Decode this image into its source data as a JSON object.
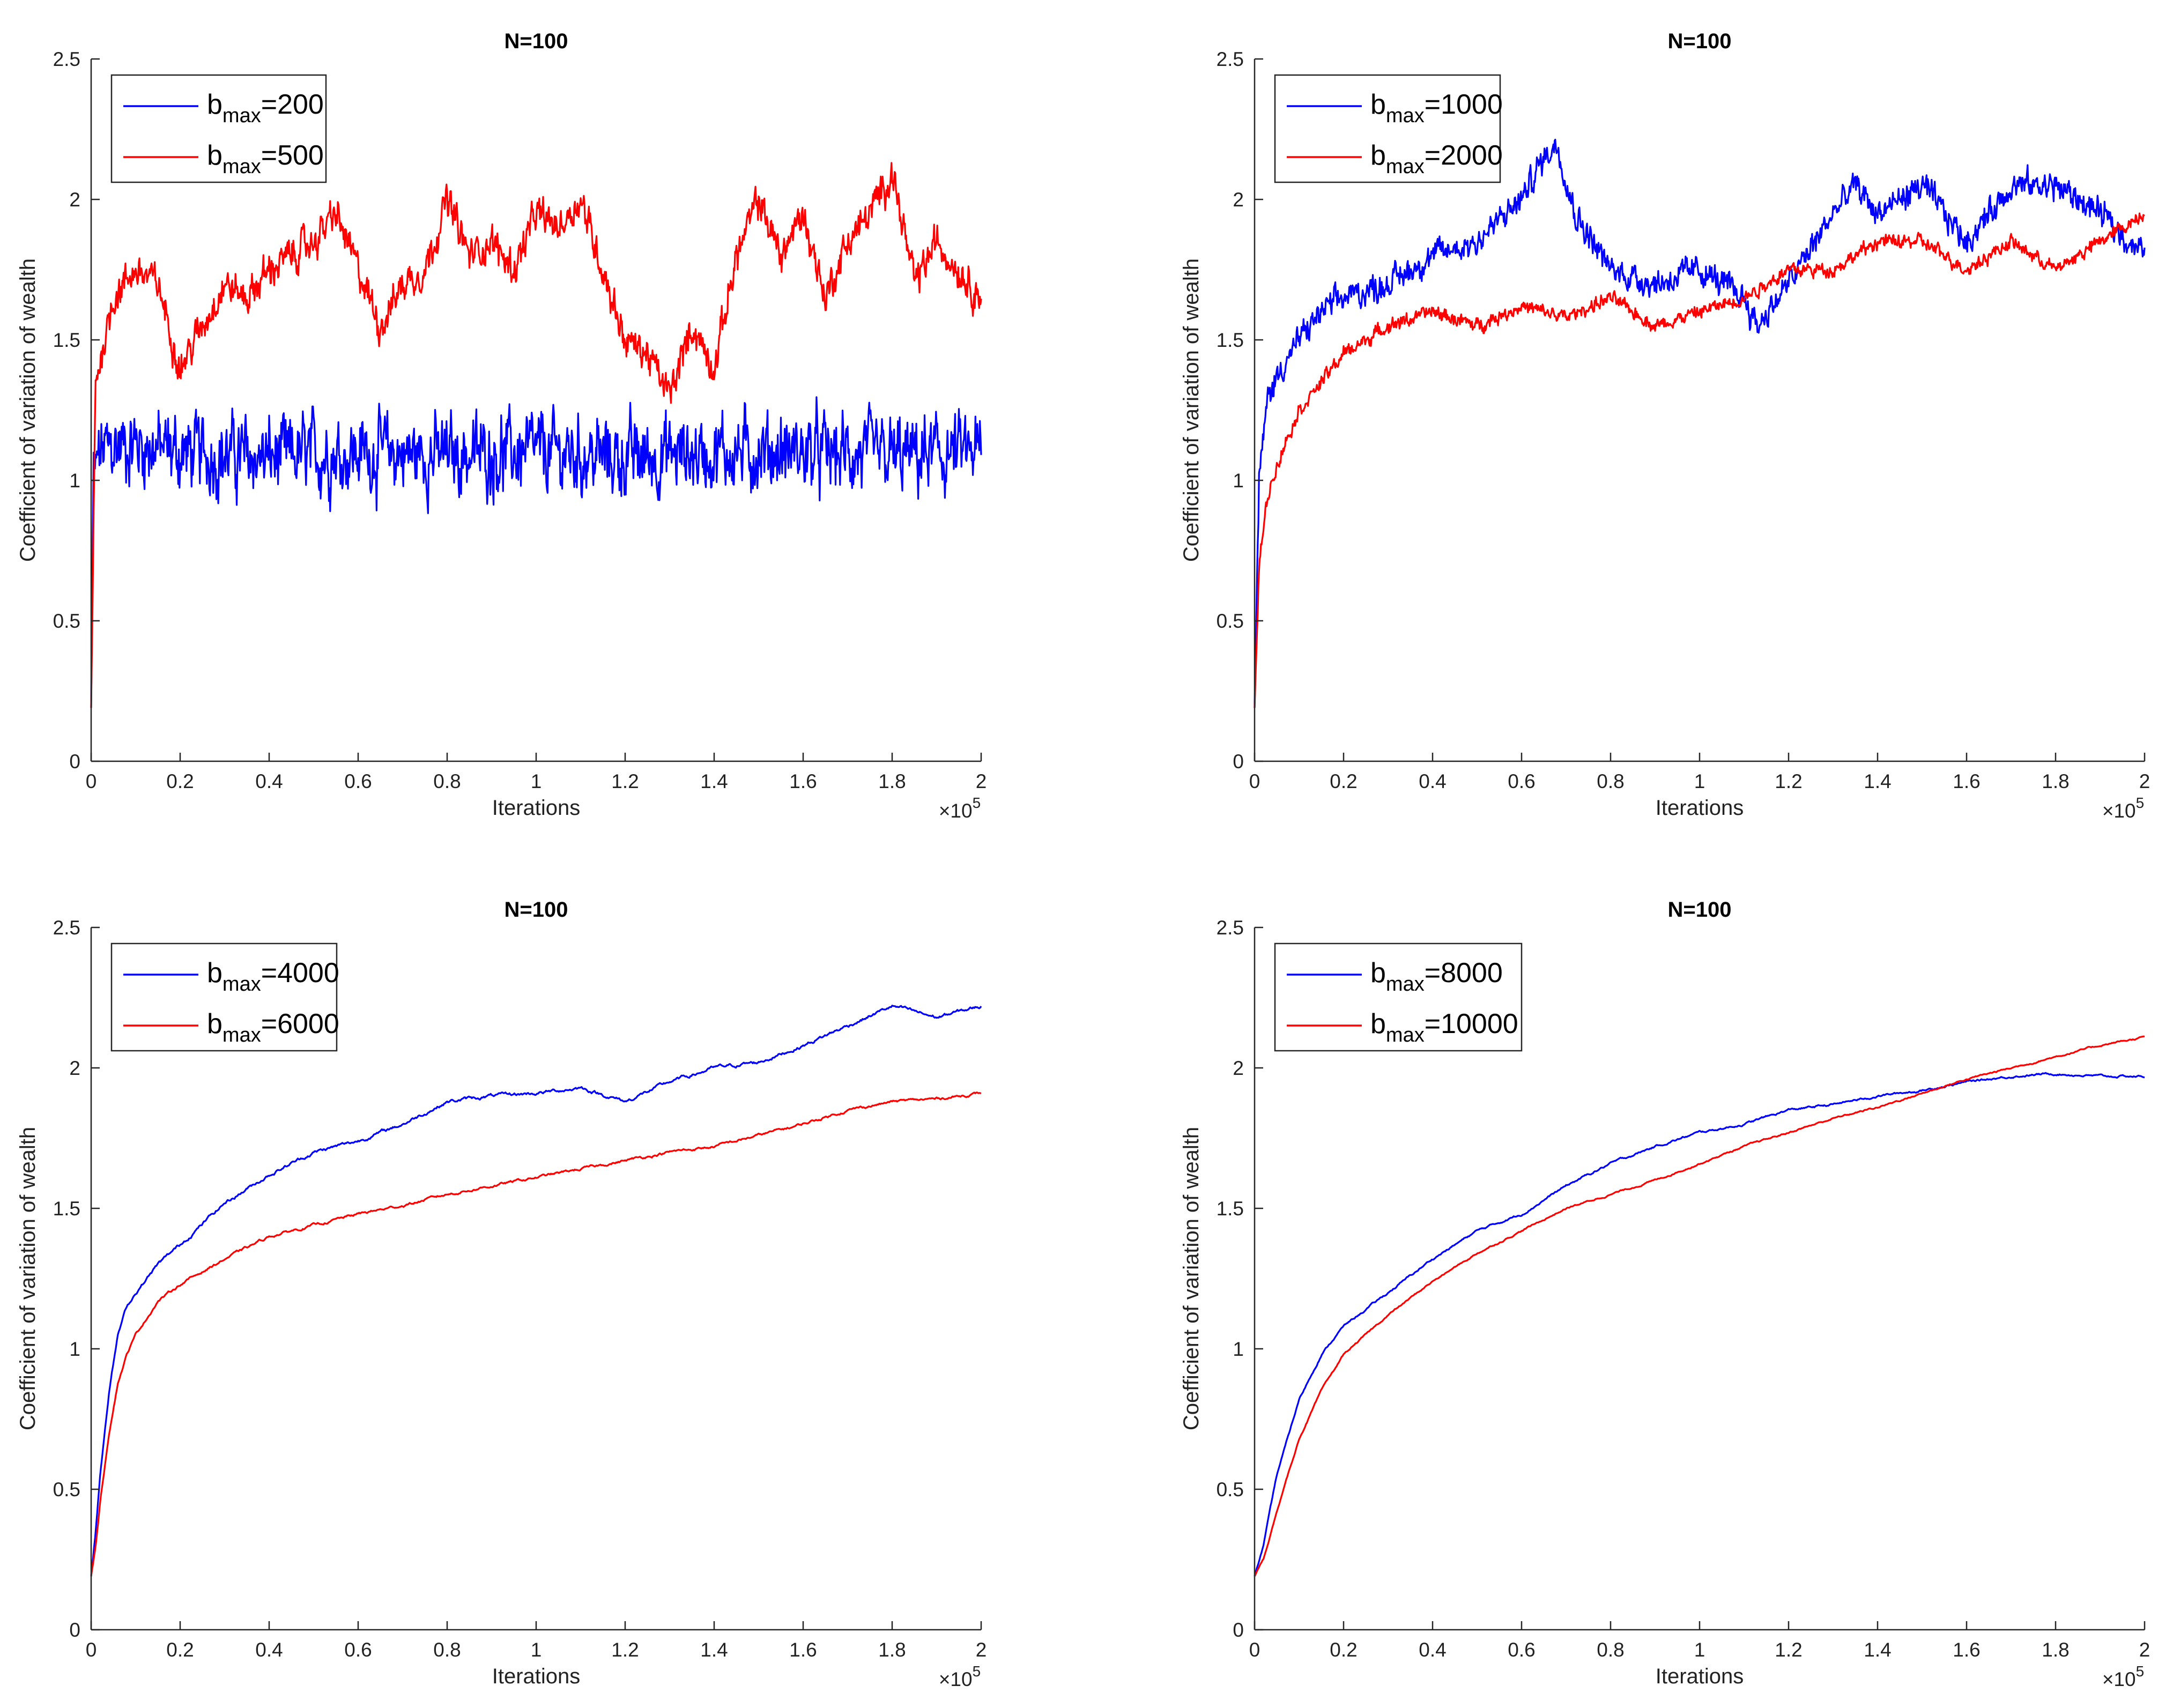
{
  "figure_title": "Coefficient of variation of wealth vs iterations, N=100",
  "colors": {
    "blue": "#0000ff",
    "red": "#ff0000",
    "axis": "#262626"
  },
  "chart_data": [
    {
      "type": "line",
      "title": "N=100",
      "xlabel": "Iterations",
      "ylabel": "Coefficient of variation of wealth",
      "x_multiplier": "×10",
      "x_multiplier_exp": "5",
      "xlim": [
        0,
        2
      ],
      "ylim": [
        0,
        2.5
      ],
      "xticks": [
        "0",
        "0.2",
        "0.4",
        "0.6",
        "0.8",
        "1",
        "1.2",
        "1.4",
        "1.6",
        "1.8",
        "2"
      ],
      "yticks": [
        "0",
        "0.5",
        "1",
        "1.5",
        "2",
        "2.5"
      ],
      "legend_position": "top-left",
      "series": [
        {
          "name": "b",
          "sub": "max",
          "suffix": "=200",
          "color": "#0000ff",
          "style": "noisy",
          "x": [
            0,
            0.005,
            0.02,
            0.05,
            0.1,
            0.2,
            0.4,
            0.6,
            0.8,
            1.0,
            1.2,
            1.4,
            1.6,
            1.8,
            2.0
          ],
          "y": [
            0.19,
            1.0,
            1.1,
            1.12,
            1.13,
            1.1,
            1.08,
            1.1,
            1.09,
            1.1,
            1.08,
            1.1,
            1.1,
            1.08,
            1.1
          ],
          "noise": 0.11
        },
        {
          "name": "b",
          "sub": "max",
          "suffix": "=500",
          "color": "#ff0000",
          "style": "noisy",
          "x": [
            0,
            0.01,
            0.05,
            0.1,
            0.15,
            0.2,
            0.25,
            0.3,
            0.35,
            0.4,
            0.45,
            0.5,
            0.55,
            0.6,
            0.65,
            0.7,
            0.75,
            0.8,
            0.85,
            0.9,
            0.95,
            1.0,
            1.05,
            1.1,
            1.15,
            1.2,
            1.25,
            1.3,
            1.35,
            1.4,
            1.45,
            1.5,
            1.55,
            1.6,
            1.65,
            1.7,
            1.75,
            1.8,
            1.85,
            1.9,
            1.95,
            2.0
          ],
          "y": [
            0.19,
            1.35,
            1.65,
            1.75,
            1.7,
            1.4,
            1.55,
            1.7,
            1.65,
            1.75,
            1.8,
            1.85,
            1.95,
            1.75,
            1.55,
            1.7,
            1.75,
            2.0,
            1.8,
            1.85,
            1.75,
            1.95,
            1.9,
            2.0,
            1.75,
            1.5,
            1.45,
            1.3,
            1.55,
            1.4,
            1.8,
            2.0,
            1.8,
            1.95,
            1.65,
            1.85,
            1.95,
            2.1,
            1.7,
            1.85,
            1.75,
            1.65
          ],
          "noise": 0.05
        }
      ]
    },
    {
      "type": "line",
      "title": "N=100",
      "xlabel": "Iterations",
      "ylabel": "Coefficient of variation of wealth",
      "x_multiplier": "×10",
      "x_multiplier_exp": "5",
      "xlim": [
        0,
        2
      ],
      "ylim": [
        0,
        2.5
      ],
      "xticks": [
        "0",
        "0.2",
        "0.4",
        "0.6",
        "0.8",
        "1",
        "1.2",
        "1.4",
        "1.6",
        "1.8",
        "2"
      ],
      "yticks": [
        "0",
        "0.5",
        "1",
        "1.5",
        "2",
        "2.5"
      ],
      "legend_position": "top-left",
      "series": [
        {
          "name": "b",
          "sub": "max",
          "suffix": "=1000",
          "color": "#0000ff",
          "style": "noisy",
          "x": [
            0,
            0.01,
            0.03,
            0.06,
            0.1,
            0.15,
            0.2,
            0.3,
            0.4,
            0.5,
            0.6,
            0.65,
            0.68,
            0.72,
            0.8,
            0.9,
            1.0,
            1.1,
            1.13,
            1.2,
            1.3,
            1.35,
            1.4,
            1.5,
            1.6,
            1.7,
            1.8,
            1.9,
            2.0
          ],
          "y": [
            0.19,
            1.0,
            1.3,
            1.4,
            1.5,
            1.6,
            1.65,
            1.7,
            1.8,
            1.85,
            2.0,
            2.15,
            2.2,
            1.95,
            1.75,
            1.7,
            1.75,
            1.65,
            1.55,
            1.7,
            1.95,
            2.05,
            1.95,
            2.05,
            1.85,
            2.05,
            2.05,
            1.95,
            1.8
          ],
          "noise": 0.04
        },
        {
          "name": "b",
          "sub": "max",
          "suffix": "=2000",
          "color": "#ff0000",
          "style": "noisy",
          "x": [
            0,
            0.01,
            0.03,
            0.06,
            0.1,
            0.15,
            0.2,
            0.3,
            0.4,
            0.5,
            0.6,
            0.7,
            0.8,
            0.9,
            1.0,
            1.1,
            1.2,
            1.3,
            1.4,
            1.5,
            1.6,
            1.7,
            1.8,
            1.9,
            2.0
          ],
          "y": [
            0.19,
            0.7,
            0.95,
            1.1,
            1.25,
            1.35,
            1.45,
            1.55,
            1.6,
            1.55,
            1.62,
            1.58,
            1.65,
            1.55,
            1.6,
            1.65,
            1.75,
            1.75,
            1.85,
            1.85,
            1.75,
            1.85,
            1.75,
            1.85,
            1.95
          ],
          "noise": 0.02
        }
      ]
    },
    {
      "type": "line",
      "title": "N=100",
      "xlabel": "Iterations",
      "ylabel": "Coefficient of variation of wealth",
      "x_multiplier": "×10",
      "x_multiplier_exp": "5",
      "xlim": [
        0,
        2
      ],
      "ylim": [
        0,
        2.5
      ],
      "xticks": [
        "0",
        "0.2",
        "0.4",
        "0.6",
        "0.8",
        "1",
        "1.2",
        "1.4",
        "1.6",
        "1.8",
        "2"
      ],
      "yticks": [
        "0",
        "0.5",
        "1",
        "1.5",
        "2",
        "2.5"
      ],
      "legend_position": "top-left",
      "series": [
        {
          "name": "b",
          "sub": "max",
          "suffix": "=4000",
          "color": "#0000ff",
          "style": "smooth",
          "x": [
            0,
            0.01,
            0.02,
            0.04,
            0.06,
            0.08,
            0.1,
            0.15,
            0.2,
            0.3,
            0.4,
            0.5,
            0.6,
            0.7,
            0.8,
            0.9,
            1.0,
            1.1,
            1.2,
            1.3,
            1.4,
            1.5,
            1.6,
            1.7,
            1.8,
            1.9,
            2.0
          ],
          "y": [
            0.19,
            0.35,
            0.55,
            0.85,
            1.05,
            1.15,
            1.2,
            1.3,
            1.37,
            1.52,
            1.62,
            1.7,
            1.74,
            1.8,
            1.88,
            1.9,
            1.91,
            1.93,
            1.88,
            1.95,
            2.0,
            2.02,
            2.08,
            2.15,
            2.22,
            2.18,
            2.22
          ],
          "noise": 0.008
        },
        {
          "name": "b",
          "sub": "max",
          "suffix": "=6000",
          "color": "#ff0000",
          "style": "smooth",
          "x": [
            0,
            0.01,
            0.02,
            0.04,
            0.06,
            0.08,
            0.1,
            0.15,
            0.2,
            0.3,
            0.4,
            0.5,
            0.6,
            0.7,
            0.8,
            0.9,
            1.0,
            1.1,
            1.2,
            1.3,
            1.4,
            1.5,
            1.6,
            1.7,
            1.8,
            1.9,
            2.0
          ],
          "y": [
            0.19,
            0.3,
            0.45,
            0.7,
            0.88,
            0.98,
            1.05,
            1.17,
            1.23,
            1.32,
            1.4,
            1.44,
            1.48,
            1.51,
            1.55,
            1.58,
            1.61,
            1.64,
            1.67,
            1.7,
            1.72,
            1.76,
            1.8,
            1.85,
            1.88,
            1.89,
            1.91
          ],
          "noise": 0.006
        }
      ]
    },
    {
      "type": "line",
      "title": "N=100",
      "xlabel": "Iterations",
      "ylabel": "Coefficient of variation of wealth",
      "x_multiplier": "×10",
      "x_multiplier_exp": "5",
      "xlim": [
        0,
        2
      ],
      "ylim": [
        0,
        2.5
      ],
      "xticks": [
        "0",
        "0.2",
        "0.4",
        "0.6",
        "0.8",
        "1",
        "1.2",
        "1.4",
        "1.6",
        "1.8",
        "2"
      ],
      "yticks": [
        "0",
        "0.5",
        "1",
        "1.5",
        "2",
        "2.5"
      ],
      "legend_position": "top-left",
      "series": [
        {
          "name": "b",
          "sub": "max",
          "suffix": "=8000",
          "color": "#0000ff",
          "style": "smooth",
          "x": [
            0,
            0.02,
            0.05,
            0.1,
            0.15,
            0.2,
            0.3,
            0.4,
            0.5,
            0.6,
            0.7,
            0.8,
            0.9,
            1.0,
            1.1,
            1.2,
            1.3,
            1.4,
            1.5,
            1.6,
            1.7,
            1.8,
            1.9,
            2.0
          ],
          "y": [
            0.19,
            0.3,
            0.55,
            0.82,
            0.98,
            1.08,
            1.2,
            1.32,
            1.42,
            1.48,
            1.58,
            1.66,
            1.72,
            1.77,
            1.8,
            1.85,
            1.87,
            1.9,
            1.92,
            1.95,
            1.97,
            1.98,
            1.97,
            1.97
          ],
          "noise": 0.005
        },
        {
          "name": "b",
          "sub": "max",
          "suffix": "=10000",
          "color": "#ff0000",
          "style": "smooth",
          "x": [
            0,
            0.02,
            0.05,
            0.1,
            0.15,
            0.2,
            0.3,
            0.4,
            0.5,
            0.6,
            0.7,
            0.8,
            0.9,
            1.0,
            1.1,
            1.2,
            1.3,
            1.4,
            1.5,
            1.6,
            1.7,
            1.8,
            1.9,
            2.0
          ],
          "y": [
            0.19,
            0.25,
            0.42,
            0.68,
            0.85,
            0.98,
            1.12,
            1.24,
            1.34,
            1.42,
            1.5,
            1.55,
            1.6,
            1.66,
            1.72,
            1.77,
            1.82,
            1.86,
            1.91,
            1.96,
            2.0,
            2.04,
            2.08,
            2.11
          ],
          "noise": 0.004
        }
      ]
    }
  ]
}
